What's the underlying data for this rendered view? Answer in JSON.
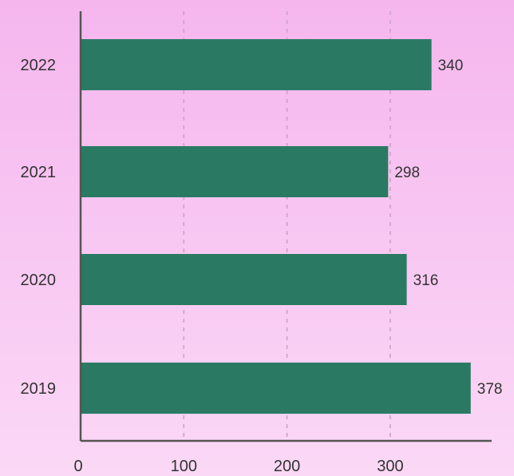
{
  "chart_data": {
    "type": "bar",
    "orientation": "horizontal",
    "categories": [
      "2022",
      "2021",
      "2020",
      "2019"
    ],
    "values": [
      340,
      298,
      316,
      378
    ],
    "data_labels": [
      "340",
      "298",
      "316",
      "378"
    ],
    "x_ticks": [
      {
        "value": 0,
        "label": "0"
      },
      {
        "value": 100,
        "label": "100"
      },
      {
        "value": 200,
        "label": "200"
      },
      {
        "value": 300,
        "label": "300"
      }
    ],
    "xlim": [
      0,
      400
    ],
    "grid": "vertical dashed",
    "title": "",
    "xlabel": "",
    "ylabel": ""
  },
  "colors": {
    "background_top": "#f5b6ee",
    "background_bottom": "#fbd8f6",
    "bar": "#2a7a63",
    "axis": "#555555",
    "grid": "#c9a0c2",
    "text": "#333333"
  }
}
